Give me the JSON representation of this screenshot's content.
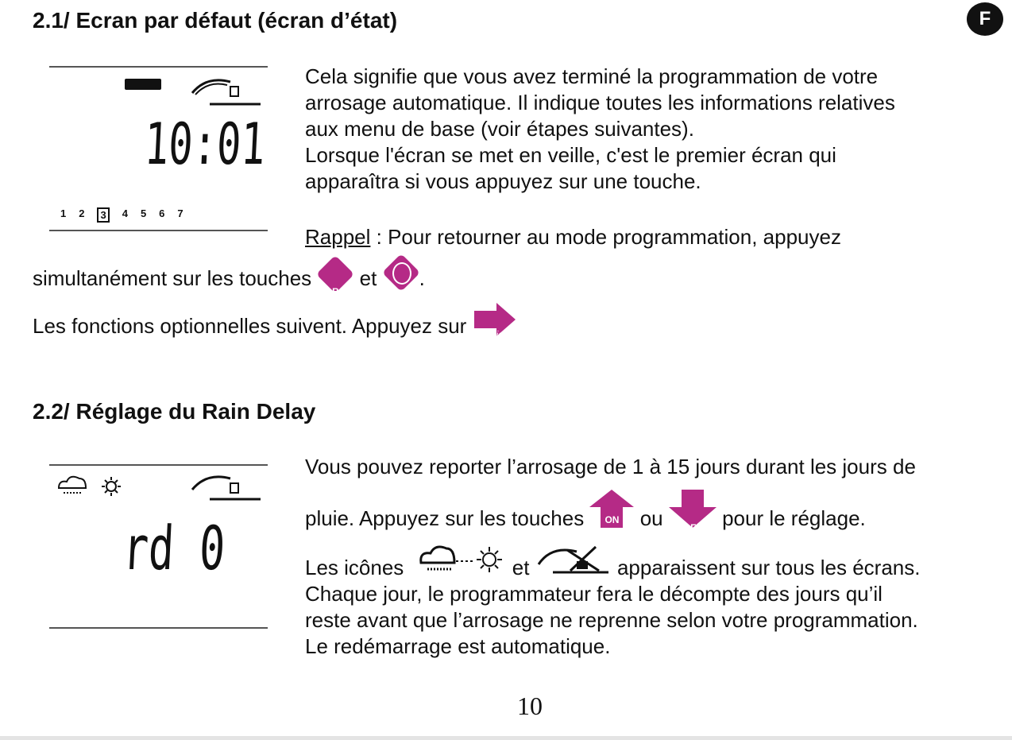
{
  "lang_badge": "F",
  "section1": {
    "title": "2.1/ Ecran par défaut (écran d’état)",
    "lcd": {
      "time": "10:01",
      "days": [
        "1",
        "2",
        "3",
        "4",
        "5",
        "6",
        "7"
      ],
      "selected_day": "3",
      "icons": [
        "battery-icon",
        "sprinkler-icon"
      ]
    },
    "lines": [
      "Cela signifie que vous avez terminé la programmation de votre",
      "arrosage automatique. Il indique toutes les informations relatives",
      "aux menu de base (voir étapes suivantes).",
      "Lorsque l'écran se met en veille, c'est le premier écran qui",
      "apparaîtra si vous appuyez sur une touche."
    ],
    "rappel_label": "Rappel",
    "rappel_text": " : Pour retourner au mode programmation, appuyez",
    "simul_text": "simultanément sur les touches",
    "key_abc": "ABC",
    "et": "et",
    "period": ".",
    "optional_text": "Les fonctions optionnelles suivent. Appuyez sur",
    "key_valid": "Valid."
  },
  "section2": {
    "title": "2.2/ Réglage du Rain Delay",
    "lcd": {
      "display": "rd 0",
      "icons": [
        "rain-sun-icon",
        "sprinkler-icon"
      ]
    },
    "line1": "Vous pouvez reporter l’arrosage de 1 à 15 jours durant les jours de",
    "line2a": "pluie. Appuyez sur les touches",
    "key_on": "ON",
    "ou": "ou",
    "key_off": "OFF",
    "line2b": "pour le réglage.",
    "line3a": "Les icônes",
    "et": "et",
    "line3b": "apparaissent sur tous les écrans.",
    "lines": [
      "Chaque jour, le programmateur fera le décompte des jours qu’il",
      "reste avant que l’arrosage ne reprenne selon votre programmation.",
      "Le redémarrage est automatique."
    ]
  },
  "page_number": "10",
  "accent_color": "#b52a86"
}
